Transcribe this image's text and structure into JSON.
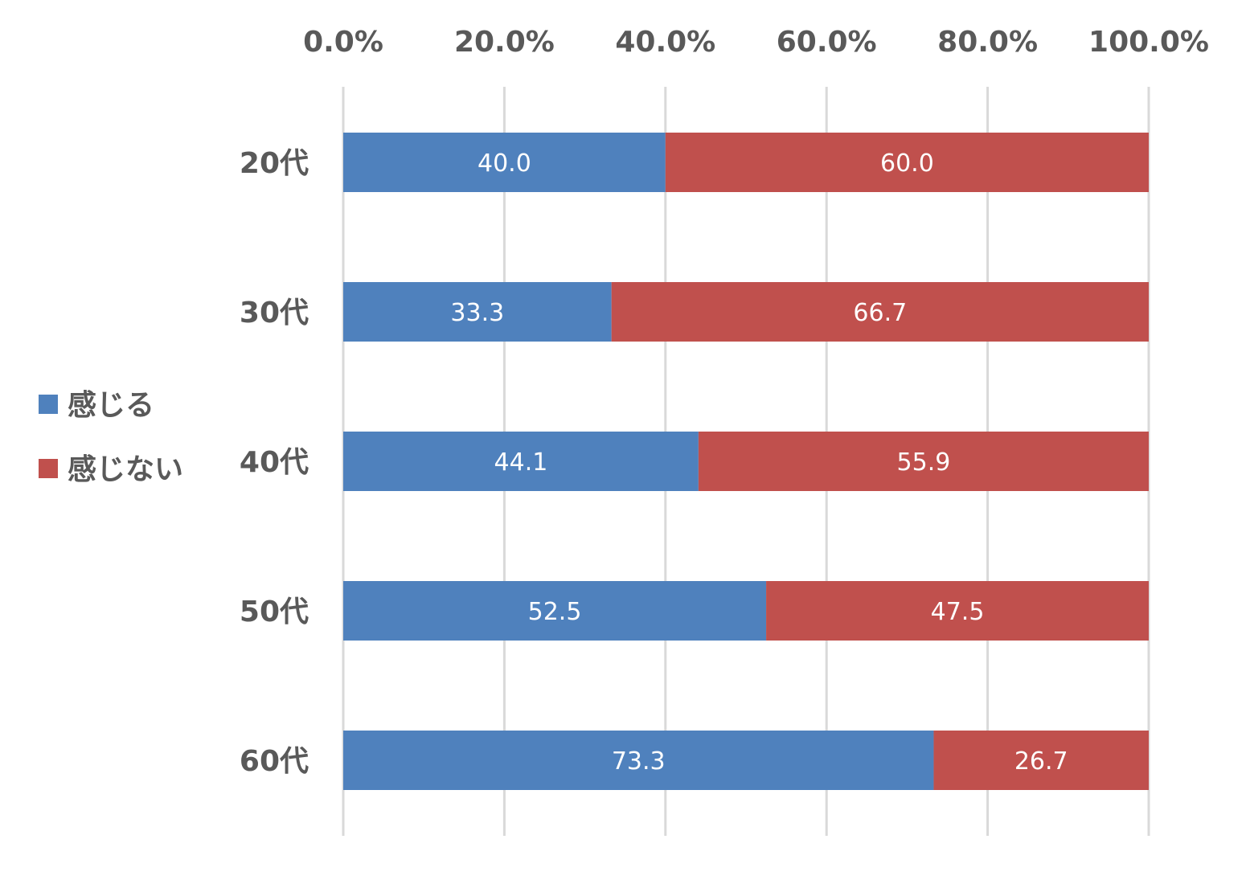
{
  "chart_data": {
    "type": "bar",
    "orientation": "horizontal",
    "stacked": "percent",
    "categories": [
      "20代",
      "30代",
      "40代",
      "50代",
      "60代"
    ],
    "series": [
      {
        "name": "感じる",
        "color": "#4f81bd",
        "values": [
          40.0,
          33.3,
          44.1,
          52.5,
          73.3
        ]
      },
      {
        "name": "感じない",
        "color": "#c0504d",
        "values": [
          60.0,
          66.7,
          55.9,
          47.5,
          26.7
        ]
      }
    ],
    "xlim": [
      0,
      100
    ],
    "x_ticks": [
      "0.0%",
      "20.0%",
      "40.0%",
      "60.0%",
      "80.0%",
      "100.0%"
    ],
    "x_axis_position": "top",
    "grid": true,
    "legend_position": "left",
    "title": "",
    "xlabel": "",
    "ylabel": ""
  }
}
